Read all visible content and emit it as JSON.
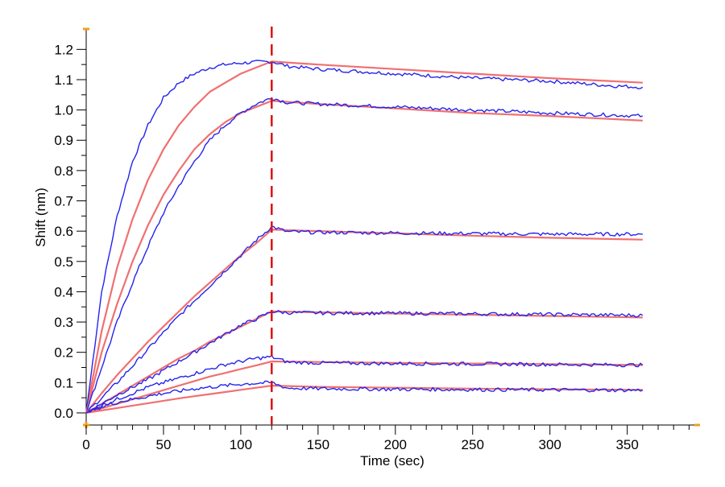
{
  "chart_data": {
    "type": "line",
    "title": "",
    "xlabel": "Time (sec)",
    "ylabel": "Shift (nm)",
    "xlim": [
      0,
      395
    ],
    "ylim": [
      -0.04,
      1.27
    ],
    "x_ticks": [
      0,
      50,
      100,
      150,
      200,
      250,
      300,
      350
    ],
    "x_tick_labels": [
      "0",
      "50",
      "100",
      "150",
      "200",
      "250",
      "300",
      "350"
    ],
    "y_ticks": [
      0.0,
      0.1,
      0.2,
      0.3,
      0.4,
      0.5,
      0.6,
      0.7,
      0.8,
      0.9,
      1.0,
      1.1,
      1.2
    ],
    "y_tick_labels": [
      "0.0",
      "0.1",
      "0.2",
      "0.3",
      "0.4",
      "0.5",
      "0.6",
      "0.7",
      "0.8",
      "0.9",
      "1.0",
      "1.1",
      "1.2"
    ],
    "x_minor_step": 10,
    "y_minor_step": 0.05,
    "grid": false,
    "legend": "none",
    "marker_line": {
      "x": 120,
      "color": "#dd1111",
      "style": "dashed"
    },
    "measured_color": "#2424ee",
    "fit_color": "#f07070",
    "axis_end_marker_color": "#f0a020",
    "series": [
      {
        "measured": [
          [
            0,
            0
          ],
          [
            10,
            0.4
          ],
          [
            20,
            0.65
          ],
          [
            30,
            0.83
          ],
          [
            40,
            0.95
          ],
          [
            50,
            1.04
          ],
          [
            60,
            1.09
          ],
          [
            70,
            1.12
          ],
          [
            80,
            1.14
          ],
          [
            90,
            1.15
          ],
          [
            100,
            1.155
          ],
          [
            110,
            1.158
          ],
          [
            120,
            1.16
          ],
          [
            130,
            1.145
          ],
          [
            150,
            1.135
          ],
          [
            200,
            1.12
          ],
          [
            250,
            1.105
          ],
          [
            300,
            1.095
          ],
          [
            340,
            1.08
          ],
          [
            360,
            1.075
          ]
        ],
        "fit": [
          [
            0,
            0
          ],
          [
            10,
            0.27
          ],
          [
            20,
            0.48
          ],
          [
            30,
            0.64
          ],
          [
            40,
            0.77
          ],
          [
            50,
            0.87
          ],
          [
            60,
            0.95
          ],
          [
            70,
            1.01
          ],
          [
            80,
            1.06
          ],
          [
            90,
            1.09
          ],
          [
            100,
            1.12
          ],
          [
            110,
            1.14
          ],
          [
            120,
            1.16
          ],
          [
            150,
            1.15
          ],
          [
            200,
            1.135
          ],
          [
            250,
            1.12
          ],
          [
            300,
            1.105
          ],
          [
            360,
            1.09
          ]
        ]
      },
      {
        "measured": [
          [
            0,
            0
          ],
          [
            10,
            0.15
          ],
          [
            20,
            0.3
          ],
          [
            30,
            0.43
          ],
          [
            40,
            0.55
          ],
          [
            50,
            0.66
          ],
          [
            60,
            0.75
          ],
          [
            70,
            0.83
          ],
          [
            80,
            0.9
          ],
          [
            90,
            0.95
          ],
          [
            100,
            0.99
          ],
          [
            110,
            1.02
          ],
          [
            120,
            1.04
          ],
          [
            130,
            1.025
          ],
          [
            150,
            1.02
          ],
          [
            200,
            1.01
          ],
          [
            250,
            1.0
          ],
          [
            300,
            0.99
          ],
          [
            360,
            0.98
          ]
        ],
        "fit": [
          [
            0,
            0
          ],
          [
            10,
            0.2
          ],
          [
            20,
            0.36
          ],
          [
            30,
            0.5
          ],
          [
            40,
            0.62
          ],
          [
            50,
            0.72
          ],
          [
            60,
            0.8
          ],
          [
            70,
            0.87
          ],
          [
            80,
            0.92
          ],
          [
            90,
            0.96
          ],
          [
            100,
            0.99
          ],
          [
            110,
            1.01
          ],
          [
            120,
            1.03
          ],
          [
            150,
            1.02
          ],
          [
            200,
            1.005
          ],
          [
            250,
            0.99
          ],
          [
            300,
            0.98
          ],
          [
            360,
            0.965
          ]
        ]
      },
      {
        "measured": [
          [
            0,
            0
          ],
          [
            10,
            0.05
          ],
          [
            20,
            0.1
          ],
          [
            30,
            0.155
          ],
          [
            40,
            0.21
          ],
          [
            50,
            0.265
          ],
          [
            60,
            0.32
          ],
          [
            70,
            0.37
          ],
          [
            80,
            0.42
          ],
          [
            90,
            0.47
          ],
          [
            100,
            0.52
          ],
          [
            110,
            0.57
          ],
          [
            120,
            0.615
          ],
          [
            130,
            0.598
          ],
          [
            150,
            0.596
          ],
          [
            200,
            0.594
          ],
          [
            250,
            0.592
          ],
          [
            300,
            0.59
          ],
          [
            360,
            0.59
          ]
        ],
        "fit": [
          [
            0,
            0
          ],
          [
            10,
            0.065
          ],
          [
            20,
            0.125
          ],
          [
            30,
            0.18
          ],
          [
            40,
            0.235
          ],
          [
            50,
            0.285
          ],
          [
            60,
            0.335
          ],
          [
            70,
            0.385
          ],
          [
            80,
            0.43
          ],
          [
            90,
            0.475
          ],
          [
            100,
            0.52
          ],
          [
            110,
            0.56
          ],
          [
            120,
            0.605
          ],
          [
            150,
            0.6
          ],
          [
            200,
            0.593
          ],
          [
            250,
            0.585
          ],
          [
            300,
            0.578
          ],
          [
            360,
            0.572
          ]
        ]
      },
      {
        "measured": [
          [
            0,
            0
          ],
          [
            10,
            0.03
          ],
          [
            20,
            0.06
          ],
          [
            30,
            0.085
          ],
          [
            40,
            0.11
          ],
          [
            50,
            0.14
          ],
          [
            60,
            0.17
          ],
          [
            70,
            0.2
          ],
          [
            80,
            0.23
          ],
          [
            90,
            0.26
          ],
          [
            100,
            0.29
          ],
          [
            110,
            0.31
          ],
          [
            120,
            0.335
          ],
          [
            130,
            0.331
          ],
          [
            150,
            0.33
          ],
          [
            200,
            0.329
          ],
          [
            250,
            0.327
          ],
          [
            300,
            0.325
          ],
          [
            360,
            0.322
          ]
        ],
        "fit": [
          [
            0,
            0
          ],
          [
            10,
            0.03
          ],
          [
            20,
            0.06
          ],
          [
            30,
            0.09
          ],
          [
            40,
            0.12
          ],
          [
            50,
            0.15
          ],
          [
            60,
            0.18
          ],
          [
            70,
            0.205
          ],
          [
            80,
            0.235
          ],
          [
            90,
            0.26
          ],
          [
            100,
            0.285
          ],
          [
            110,
            0.31
          ],
          [
            120,
            0.335
          ],
          [
            150,
            0.332
          ],
          [
            200,
            0.328
          ],
          [
            250,
            0.324
          ],
          [
            300,
            0.32
          ],
          [
            360,
            0.315
          ]
        ]
      },
      {
        "measured": [
          [
            0,
            0
          ],
          [
            10,
            0.025
          ],
          [
            20,
            0.045
          ],
          [
            30,
            0.065
          ],
          [
            40,
            0.085
          ],
          [
            50,
            0.1
          ],
          [
            60,
            0.115
          ],
          [
            70,
            0.13
          ],
          [
            80,
            0.145
          ],
          [
            90,
            0.16
          ],
          [
            100,
            0.17
          ],
          [
            110,
            0.18
          ],
          [
            120,
            0.185
          ],
          [
            130,
            0.168
          ],
          [
            150,
            0.165
          ],
          [
            200,
            0.163
          ],
          [
            250,
            0.162
          ],
          [
            300,
            0.16
          ],
          [
            360,
            0.158
          ]
        ],
        "fit": [
          [
            0,
            0
          ],
          [
            10,
            0.015
          ],
          [
            20,
            0.03
          ],
          [
            30,
            0.045
          ],
          [
            40,
            0.06
          ],
          [
            50,
            0.075
          ],
          [
            60,
            0.09
          ],
          [
            70,
            0.105
          ],
          [
            80,
            0.12
          ],
          [
            90,
            0.132
          ],
          [
            100,
            0.145
          ],
          [
            110,
            0.157
          ],
          [
            120,
            0.17
          ],
          [
            150,
            0.168
          ],
          [
            200,
            0.165
          ],
          [
            250,
            0.163
          ],
          [
            300,
            0.161
          ],
          [
            360,
            0.158
          ]
        ]
      },
      {
        "measured": [
          [
            0,
            0
          ],
          [
            10,
            0.02
          ],
          [
            20,
            0.035
          ],
          [
            30,
            0.045
          ],
          [
            40,
            0.055
          ],
          [
            50,
            0.065
          ],
          [
            60,
            0.072
          ],
          [
            70,
            0.08
          ],
          [
            80,
            0.085
          ],
          [
            90,
            0.09
          ],
          [
            100,
            0.095
          ],
          [
            110,
            0.098
          ],
          [
            120,
            0.1
          ],
          [
            130,
            0.082
          ],
          [
            150,
            0.08
          ],
          [
            200,
            0.078
          ],
          [
            250,
            0.077
          ],
          [
            300,
            0.076
          ],
          [
            360,
            0.075
          ]
        ],
        "fit": [
          [
            0,
            0
          ],
          [
            10,
            0.008
          ],
          [
            20,
            0.016
          ],
          [
            30,
            0.024
          ],
          [
            40,
            0.032
          ],
          [
            50,
            0.04
          ],
          [
            60,
            0.048
          ],
          [
            70,
            0.055
          ],
          [
            80,
            0.062
          ],
          [
            90,
            0.069
          ],
          [
            100,
            0.076
          ],
          [
            110,
            0.083
          ],
          [
            120,
            0.09
          ],
          [
            150,
            0.086
          ],
          [
            200,
            0.083
          ],
          [
            250,
            0.08
          ],
          [
            300,
            0.078
          ],
          [
            360,
            0.076
          ]
        ]
      }
    ]
  }
}
